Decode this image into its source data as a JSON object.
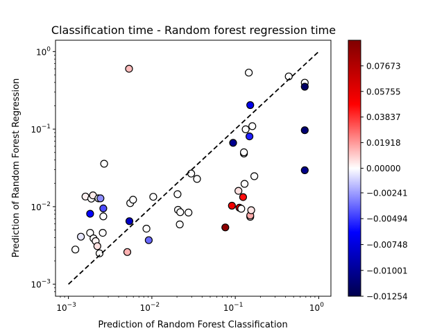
{
  "chart_data": {
    "type": "scatter",
    "title": "Classification time - Random forest regression time",
    "xlabel": "Prediction of Random Forest Classification",
    "ylabel": "Prediction of Random Forest Regression",
    "xscale": "log",
    "yscale": "log",
    "xlim": [
      0.0007,
      1.4
    ],
    "ylim": [
      0.0007,
      1.4
    ],
    "x_ticks": [
      {
        "value": 0.001,
        "base": "10",
        "exp": "−3"
      },
      {
        "value": 0.01,
        "base": "10",
        "exp": "−2"
      },
      {
        "value": 0.1,
        "base": "10",
        "exp": "−1"
      },
      {
        "value": 1,
        "base": "10",
        "exp": "0"
      }
    ],
    "y_ticks": [
      {
        "value": 0.001,
        "base": "10",
        "exp": "−3"
      },
      {
        "value": 0.01,
        "base": "10",
        "exp": "−2"
      },
      {
        "value": 0.1,
        "base": "10",
        "exp": "−1"
      },
      {
        "value": 1,
        "base": "10",
        "exp": "0"
      }
    ],
    "reference_line": {
      "style": "dashed",
      "color": "#000000",
      "x": [
        0.001,
        1
      ],
      "y": [
        0.001,
        1
      ]
    },
    "colorbar": {
      "cmap": "seismic",
      "vmin": -0.01254,
      "vmax": 0.0959,
      "ticks": [
        {
          "value": 0.07673,
          "label": "0.07673"
        },
        {
          "value": 0.05755,
          "label": "0.05755"
        },
        {
          "value": 0.03837,
          "label": "0.03837"
        },
        {
          "value": 0.01918,
          "label": "0.01918"
        },
        {
          "value": 0.0,
          "label": "0.00000"
        },
        {
          "value": -0.00241,
          "label": "−0.00241"
        },
        {
          "value": -0.00494,
          "label": "−0.00494"
        },
        {
          "value": -0.00748,
          "label": "−0.00748"
        },
        {
          "value": -0.01001,
          "label": "−0.01001"
        },
        {
          "value": -0.01254,
          "label": "−0.01254"
        }
      ]
    },
    "points": [
      {
        "x": 0.00121,
        "y": 0.0028,
        "c": 0.0
      },
      {
        "x": 0.00141,
        "y": 0.0041,
        "c": -0.0006
      },
      {
        "x": 0.0016,
        "y": 0.0135,
        "c": 0.0026
      },
      {
        "x": 0.00182,
        "y": 0.0081,
        "c": -0.0062
      },
      {
        "x": 0.00188,
        "y": 0.0127,
        "c": 0.0
      },
      {
        "x": 0.00182,
        "y": 0.0046,
        "c": 0.0
      },
      {
        "x": 0.00197,
        "y": 0.014,
        "c": 0.0036
      },
      {
        "x": 0.002,
        "y": 0.0039,
        "c": 0.0
      },
      {
        "x": 0.00212,
        "y": 0.0036,
        "c": 0.0021
      },
      {
        "x": 0.00222,
        "y": 0.0031,
        "c": 0.0059
      },
      {
        "x": 0.00229,
        "y": 0.0128,
        "c": 0.0
      },
      {
        "x": 0.00236,
        "y": 0.0025,
        "c": 0.0
      },
      {
        "x": 0.00242,
        "y": 0.0128,
        "c": -0.0028
      },
      {
        "x": 0.00258,
        "y": 0.0046,
        "c": 0.0
      },
      {
        "x": 0.00262,
        "y": 0.0095,
        "c": -0.0044
      },
      {
        "x": 0.00262,
        "y": 0.0075,
        "c": 0.0
      },
      {
        "x": 0.00268,
        "y": 0.0358,
        "c": 0.0
      },
      {
        "x": 0.00508,
        "y": 0.0026,
        "c": 0.0145
      },
      {
        "x": 0.00533,
        "y": 0.6,
        "c": 0.0125
      },
      {
        "x": 0.00538,
        "y": 0.0065,
        "c": -0.0083
      },
      {
        "x": 0.0055,
        "y": 0.0111,
        "c": 0.0
      },
      {
        "x": 0.00595,
        "y": 0.0123,
        "c": 0.0
      },
      {
        "x": 0.00862,
        "y": 0.0052,
        "c": 0.0
      },
      {
        "x": 0.00917,
        "y": 0.0037,
        "c": -0.0037
      },
      {
        "x": 0.0104,
        "y": 0.0134,
        "c": 0.0
      },
      {
        "x": 0.0203,
        "y": 0.0145,
        "c": 0.0
      },
      {
        "x": 0.0206,
        "y": 0.0091,
        "c": 0.0
      },
      {
        "x": 0.0219,
        "y": 0.0085,
        "c": 0.0
      },
      {
        "x": 0.0216,
        "y": 0.0059,
        "c": 0.0
      },
      {
        "x": 0.0275,
        "y": 0.0084,
        "c": 0.0
      },
      {
        "x": 0.0296,
        "y": 0.0267,
        "c": 0.0
      },
      {
        "x": 0.0348,
        "y": 0.0228,
        "c": 0.0
      },
      {
        "x": 0.0759,
        "y": 0.0054,
        "c": 0.091
      },
      {
        "x": 0.0912,
        "y": 0.0103,
        "c": 0.0525
      },
      {
        "x": 0.0941,
        "y": 0.0666,
        "c": -0.0102
      },
      {
        "x": 0.109,
        "y": 0.016,
        "c": 0.0058
      },
      {
        "x": 0.112,
        "y": 0.0097,
        "c": 0.061
      },
      {
        "x": 0.118,
        "y": 0.0094,
        "c": 0.0
      },
      {
        "x": 0.124,
        "y": 0.0133,
        "c": 0.0455
      },
      {
        "x": 0.127,
        "y": 0.0484,
        "c": 0.0
      },
      {
        "x": 0.127,
        "y": 0.0503,
        "c": 0.0
      },
      {
        "x": 0.129,
        "y": 0.0197,
        "c": 0.0
      },
      {
        "x": 0.133,
        "y": 0.0995,
        "c": 0.0
      },
      {
        "x": 0.145,
        "y": 0.535,
        "c": 0.0
      },
      {
        "x": 0.148,
        "y": 0.0806,
        "c": -0.0055
      },
      {
        "x": 0.151,
        "y": 0.0074,
        "c": 0.0
      },
      {
        "x": 0.151,
        "y": 0.0077,
        "c": 0.0162
      },
      {
        "x": 0.151,
        "y": 0.204,
        "c": -0.007
      },
      {
        "x": 0.155,
        "y": 0.009,
        "c": 0.0048
      },
      {
        "x": 0.16,
        "y": 0.109,
        "c": 0.0
      },
      {
        "x": 0.169,
        "y": 0.0247,
        "c": 0.0
      },
      {
        "x": 0.437,
        "y": 0.478,
        "c": 0.0
      },
      {
        "x": 0.68,
        "y": 0.397,
        "c": 0.0
      },
      {
        "x": 0.68,
        "y": 0.352,
        "c": -0.0117
      },
      {
        "x": 0.68,
        "y": 0.0968,
        "c": -0.0112
      },
      {
        "x": 0.68,
        "y": 0.0295,
        "c": -0.0104
      }
    ]
  }
}
